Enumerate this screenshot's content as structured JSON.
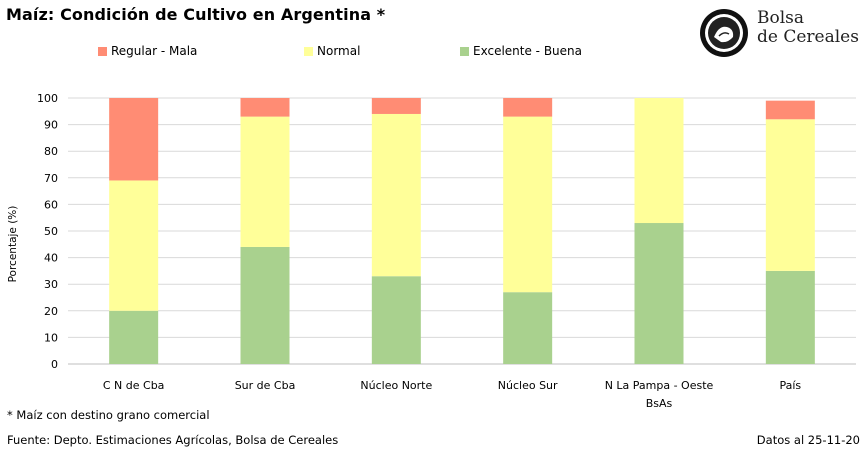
{
  "page": {
    "title": "Maíz: Condición de Cultivo en Argentina *",
    "footnote": "* Maíz con destino grano comercial",
    "source": "Fuente: Depto. Estimaciones Agrícolas, Bolsa de Cereales",
    "date": "Datos al 25-11-20",
    "logo": {
      "line1": "Bolsa",
      "line2": "de Cereales",
      "seal_text": "Bolsa de Comercio de Buenos Aires"
    }
  },
  "chart_data": {
    "type": "bar",
    "stacked": true,
    "title": "Maíz: Condición de Cultivo en Argentina *",
    "xlabel": "",
    "ylabel": "Porcentaje (%)",
    "ylim": [
      0,
      100
    ],
    "yticks": [
      0,
      10,
      20,
      30,
      40,
      50,
      60,
      70,
      80,
      90,
      100
    ],
    "grid": true,
    "legend_position": "top",
    "categories": [
      "C N de Cba",
      "Sur de Cba",
      "Núcleo Norte",
      "Núcleo Sur",
      "N La Pampa - Oeste BsAs",
      "País"
    ],
    "category_lines": [
      [
        "C N de Cba"
      ],
      [
        "Sur de Cba"
      ],
      [
        "Núcleo Norte"
      ],
      [
        "Núcleo Sur"
      ],
      [
        "N La Pampa - Oeste",
        "BsAs"
      ],
      [
        "País"
      ]
    ],
    "series": [
      {
        "name": "Excelente - Buena",
        "color": "#a9d18e",
        "values": [
          20,
          44,
          33,
          27,
          53,
          35
        ]
      },
      {
        "name": "Normal",
        "color": "#ffff99",
        "values": [
          49,
          49,
          61,
          66,
          47,
          57
        ]
      },
      {
        "name": "Regular - Mala",
        "color": "#ff8c74",
        "values": [
          31,
          7,
          6,
          7,
          0,
          7
        ]
      }
    ],
    "legend_order": [
      "Regular - Mala",
      "Normal",
      "Excelente - Buena"
    ]
  }
}
